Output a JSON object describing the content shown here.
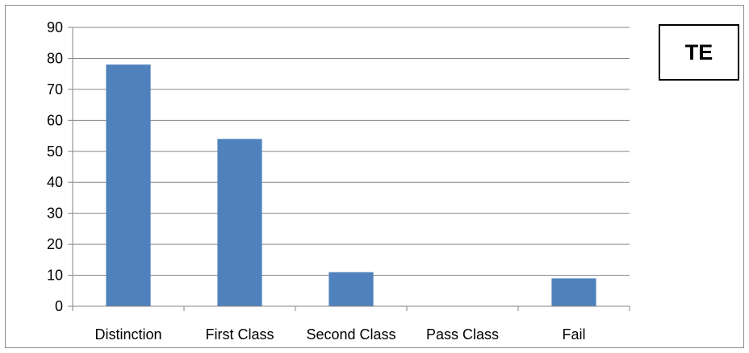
{
  "chart_data": {
    "type": "bar",
    "categories": [
      "Distinction",
      "First Class",
      "Second Class",
      "Pass Class",
      "Fail"
    ],
    "values": [
      78,
      54,
      11,
      0,
      9
    ],
    "ylim": [
      0,
      90
    ],
    "yticks": [
      0,
      10,
      20,
      30,
      40,
      50,
      60,
      70,
      80,
      90
    ],
    "grid": true,
    "bar_color": "#4f81bd",
    "legend": "none"
  },
  "badge": {
    "text": "TE"
  }
}
